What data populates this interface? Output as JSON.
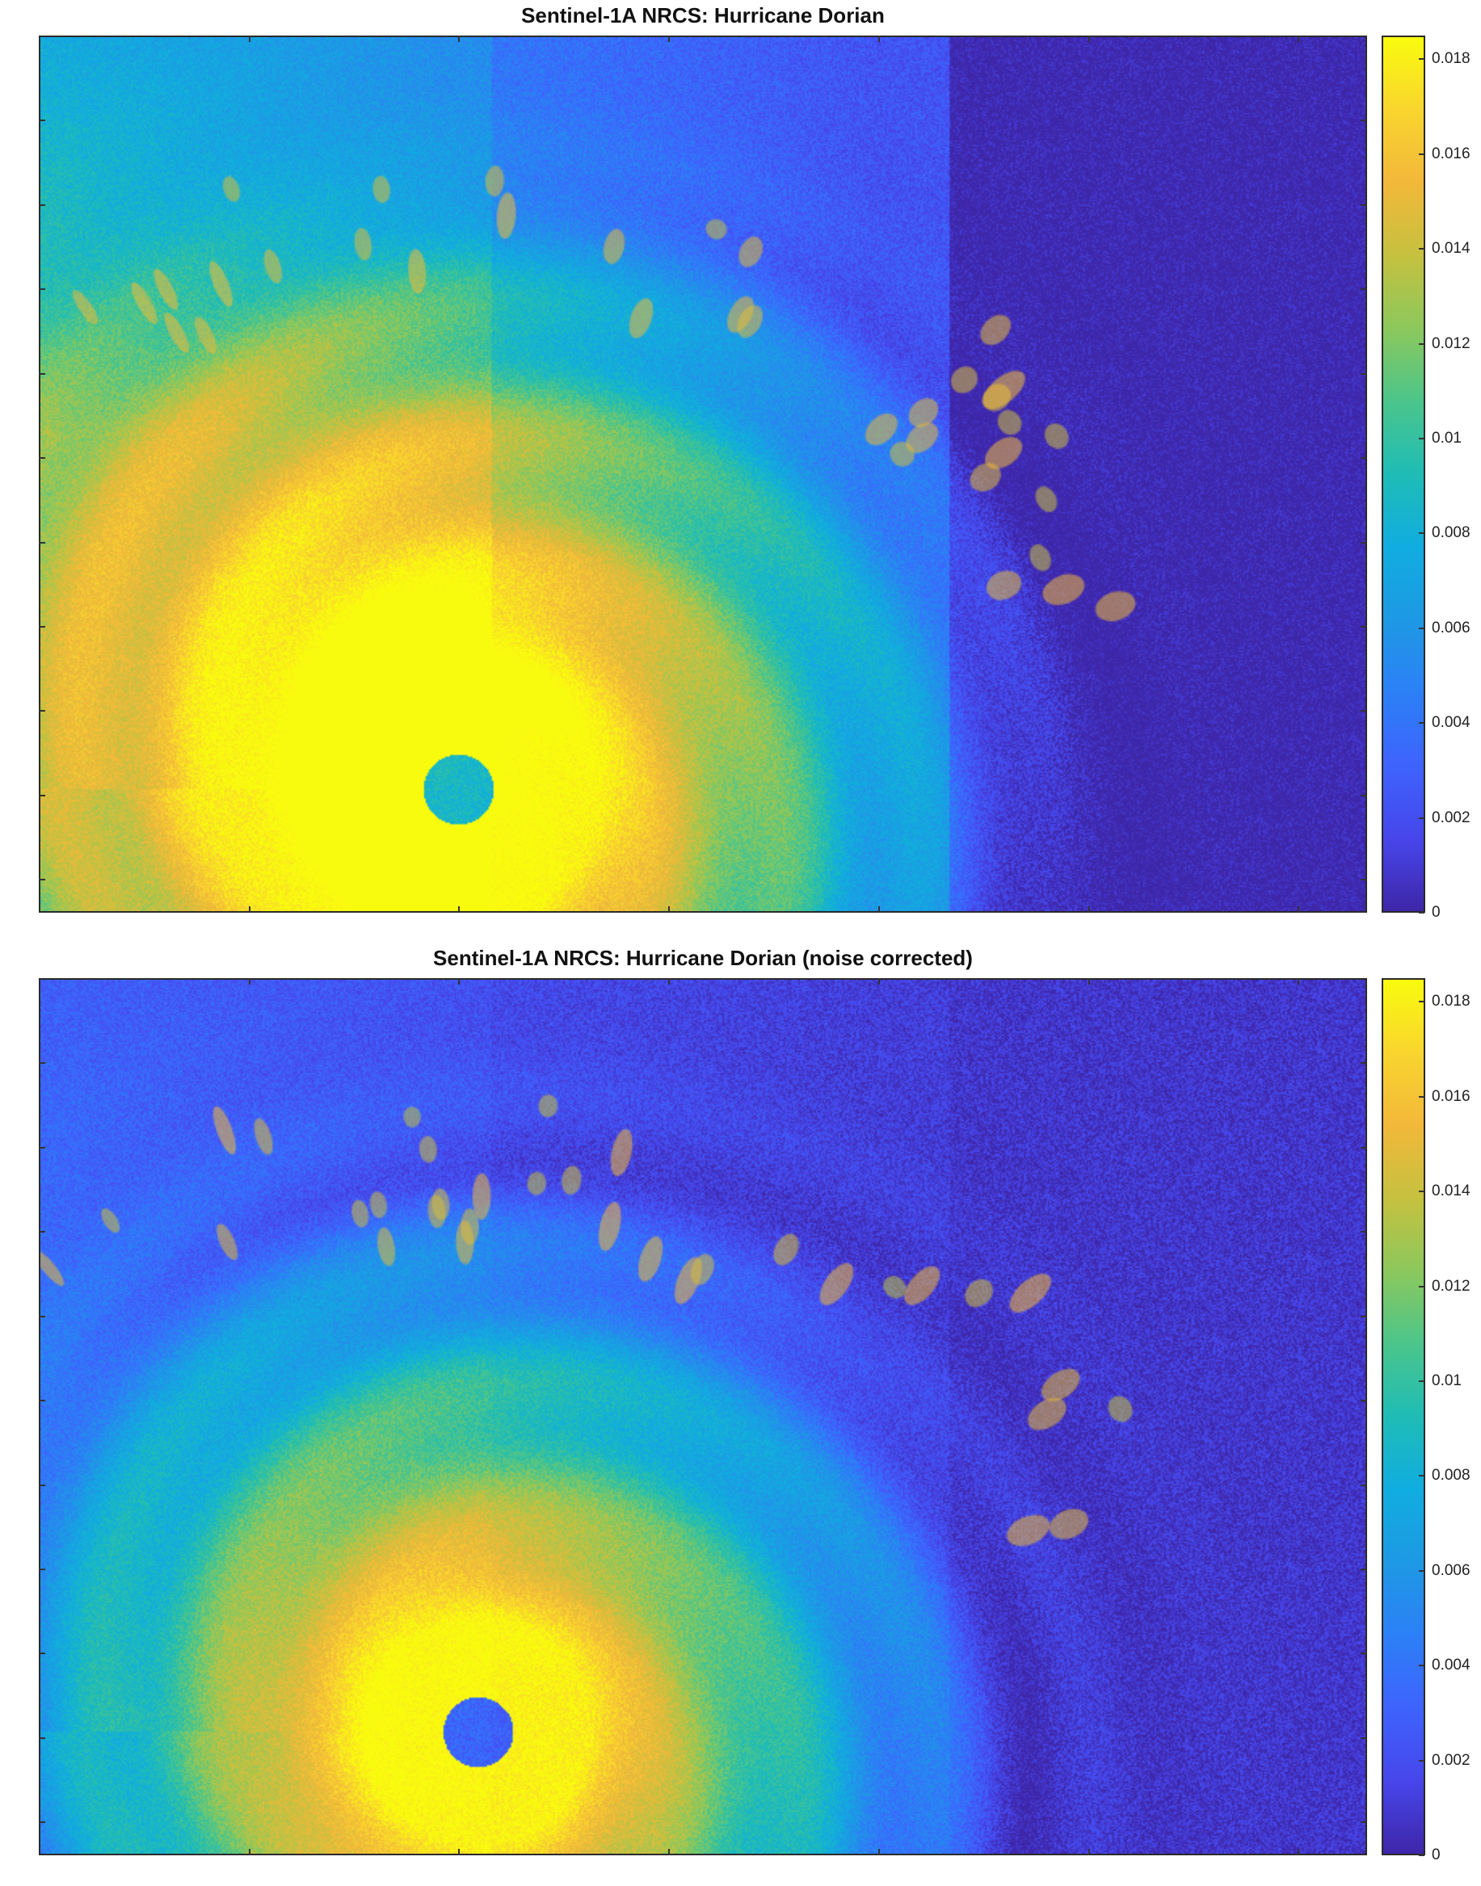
{
  "colormap": [
    "#3e26a8",
    "#4746eb",
    "#3e63fd",
    "#2c80f6",
    "#1e99e4",
    "#10ade0",
    "#1fbcb6",
    "#4bc58b",
    "#8cc85c",
    "#c6c13f",
    "#f2b83a",
    "#f9d52e",
    "#f9fb0e"
  ],
  "chart_data": [
    {
      "type": "heatmap",
      "title": "Sentinel-1A NRCS: Hurricane Dorian",
      "colorbar": {
        "min": 0,
        "max": 0.0185,
        "ticks": [
          0,
          0.002,
          0.004,
          0.006,
          0.008,
          0.01,
          0.012,
          0.014,
          0.016,
          0.018
        ],
        "tick_labels": [
          "0",
          "0.002",
          "0.004",
          "0.006",
          "0.008",
          "0.01",
          "0.012",
          "0.014",
          "0.016",
          "0.018"
        ]
      },
      "x_tick_count": 6,
      "y_tick_count": 10,
      "field": {
        "eye_center": [
          0.315,
          0.86
        ],
        "eye_radius": 0.04,
        "eye_value": 0.0065,
        "core_value": 0.0185,
        "core_radius": 0.16,
        "falloff_radius": 0.55,
        "background_value": 0.0035,
        "left_boost": 0.0075,
        "swath_steps": [
          0.34,
          0.685
        ],
        "swath_offsets": [
          0.0,
          -0.0012,
          -0.0035
        ]
      }
    },
    {
      "type": "heatmap",
      "title": "Sentinel-1A NRCS: Hurricane Dorian (noise corrected)",
      "colorbar": {
        "min": 0,
        "max": 0.0185,
        "ticks": [
          0,
          0.002,
          0.004,
          0.006,
          0.008,
          0.01,
          0.012,
          0.014,
          0.016,
          0.018
        ],
        "tick_labels": [
          "0",
          "0.002",
          "0.004",
          "0.006",
          "0.008",
          "0.01",
          "0.012",
          "0.014",
          "0.016",
          "0.018"
        ]
      },
      "x_tick_count": 6,
      "y_tick_count": 10,
      "field": {
        "eye_center": [
          0.33,
          0.86
        ],
        "eye_radius": 0.04,
        "eye_value": 0.0025,
        "core_value": 0.018,
        "core_radius": 0.13,
        "falloff_radius": 0.5,
        "background_value": 0.0015,
        "left_boost": 0.0025,
        "swath_steps": [
          0.34,
          0.685
        ],
        "swath_offsets": [
          0.0,
          -0.0003,
          -0.0007
        ]
      }
    }
  ]
}
